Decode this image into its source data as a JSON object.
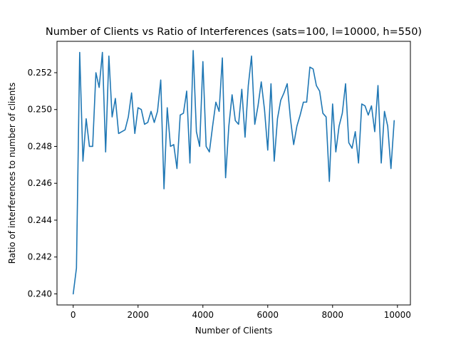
{
  "chart_data": {
    "type": "line",
    "title": "Number of Clients vs Ratio of Interferences (sats=100, l=10000, h=550)",
    "xlabel": "Number of Clients",
    "ylabel": "Ratio of interferences to number of clients",
    "xlim": [
      -500,
      10400
    ],
    "ylim": [
      0.2394,
      0.2537
    ],
    "xticks": [
      0,
      2000,
      4000,
      6000,
      8000,
      10000
    ],
    "xtick_labels": [
      "0",
      "2000",
      "4000",
      "6000",
      "8000",
      "10000"
    ],
    "yticks": [
      0.24,
      0.242,
      0.244,
      0.246,
      0.248,
      0.25,
      0.252
    ],
    "ytick_labels": [
      "0.240",
      "0.242",
      "0.244",
      "0.246",
      "0.248",
      "0.250",
      "0.252"
    ],
    "grid": false,
    "series": [
      {
        "color": "#1f77b4",
        "x": [
          0,
          100,
          200,
          300,
          400,
          500,
          600,
          700,
          800,
          900,
          1000,
          1100,
          1200,
          1300,
          1400,
          1500,
          1600,
          1700,
          1800,
          1900,
          2000,
          2100,
          2200,
          2300,
          2400,
          2500,
          2600,
          2700,
          2800,
          2900,
          3000,
          3100,
          3200,
          3300,
          3400,
          3500,
          3600,
          3700,
          3800,
          3900,
          4000,
          4100,
          4200,
          4300,
          4400,
          4500,
          4600,
          4700,
          4800,
          4900,
          5000,
          5100,
          5200,
          5300,
          5400,
          5500,
          5600,
          5700,
          5800,
          5900,
          6000,
          6100,
          6200,
          6300,
          6400,
          6500,
          6600,
          6700,
          6800,
          6900,
          7000,
          7100,
          7200,
          7300,
          7400,
          7500,
          7600,
          7700,
          7800,
          7900,
          8000,
          8100,
          8200,
          8300,
          8400,
          8500,
          8600,
          8700,
          8800,
          8900,
          9000,
          9100,
          9200,
          9300,
          9400,
          9500,
          9600,
          9700,
          9800,
          9900
        ],
        "values": [
          0.24,
          0.2414,
          0.2531,
          0.2472,
          0.2495,
          0.248,
          0.248,
          0.252,
          0.2512,
          0.2531,
          0.2477,
          0.2529,
          0.2496,
          0.2506,
          0.2487,
          0.2488,
          0.2489,
          0.2496,
          0.2509,
          0.2487,
          0.2501,
          0.25,
          0.2492,
          0.2493,
          0.2499,
          0.2493,
          0.2499,
          0.2516,
          0.2457,
          0.2501,
          0.248,
          0.2481,
          0.2468,
          0.2497,
          0.2498,
          0.251,
          0.2471,
          0.2532,
          0.2488,
          0.248,
          0.2526,
          0.248,
          0.2477,
          0.2491,
          0.2504,
          0.2499,
          0.2528,
          0.2463,
          0.2491,
          0.2508,
          0.2494,
          0.2492,
          0.2511,
          0.2485,
          0.2513,
          0.2529,
          0.2492,
          0.2502,
          0.2515,
          0.25,
          0.2478,
          0.2514,
          0.2472,
          0.2495,
          0.2505,
          0.2509,
          0.2514,
          0.2495,
          0.2481,
          0.2491,
          0.2497,
          0.2504,
          0.2504,
          0.2523,
          0.2522,
          0.2513,
          0.251,
          0.2498,
          0.2496,
          0.2461,
          0.2503,
          0.2477,
          0.2491,
          0.2498,
          0.2514,
          0.2482,
          0.2479,
          0.2488,
          0.2471,
          0.2503,
          0.2502,
          0.2497,
          0.2502,
          0.2488,
          0.2513,
          0.2471,
          0.2499,
          0.2491,
          0.2468,
          0.2494
        ]
      }
    ]
  }
}
